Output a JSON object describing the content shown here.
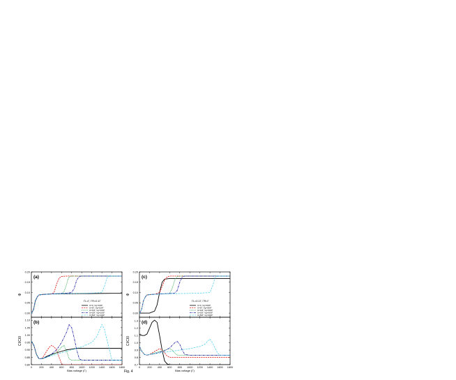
{
  "figure": {
    "caption": "Fig. 4"
  },
  "chart_data": [
    {
      "panel": "(a)",
      "type": "line",
      "ylabel": "Φ",
      "xlim": [
        0,
        1800
      ],
      "ylim": [
        -0.02,
        0.2
      ],
      "x_ticks": [
        0,
        200,
        400,
        600,
        800,
        1000,
        1200,
        1400,
        1600,
        1800
      ],
      "y_ticks": [
        "0.00",
        "0.05",
        "0.10",
        "0.15",
        "0.20"
      ],
      "annotation": "ΓL=Γ, ΓR=0.1Γ",
      "legend_position": "right",
      "legend": [
        "U=0, Vg=100Γ",
        "U=5Γ, Vg=100Γ",
        "U=10Γ, Vg=100Γ",
        "U=20Γ, Vg=100Γ",
        "U=50Γ, Vg=100Γ"
      ],
      "series": [
        {
          "x": [
            0,
            40,
            80,
            120,
            150,
            200,
            300,
            400,
            600,
            700,
            1000,
            1100,
            1600,
            1700,
            1800
          ],
          "y": [
            0.0,
            0.015,
            0.06,
            0.08,
            0.088,
            0.09,
            0.092,
            0.093,
            0.094,
            0.094,
            0.095,
            0.095,
            0.096,
            0.096,
            0.096
          ]
        },
        {
          "x": [
            0,
            40,
            80,
            120,
            150,
            200,
            300,
            400,
            450,
            500,
            550,
            600,
            700,
            800,
            1800
          ],
          "y": [
            0.0,
            0.015,
            0.06,
            0.08,
            0.088,
            0.09,
            0.092,
            0.093,
            0.1,
            0.14,
            0.17,
            0.178,
            0.18,
            0.18,
            0.18
          ]
        },
        {
          "x": [
            0,
            40,
            80,
            120,
            150,
            200,
            400,
            600,
            650,
            700,
            720,
            750,
            800,
            1800
          ],
          "y": [
            0.0,
            0.015,
            0.06,
            0.08,
            0.088,
            0.09,
            0.093,
            0.095,
            0.105,
            0.14,
            0.16,
            0.175,
            0.18,
            0.18
          ]
        },
        {
          "x": [
            0,
            40,
            80,
            120,
            150,
            200,
            400,
            700,
            800,
            850,
            900,
            950,
            1000,
            1800
          ],
          "y": [
            0.0,
            0.015,
            0.06,
            0.08,
            0.088,
            0.09,
            0.093,
            0.097,
            0.1,
            0.12,
            0.16,
            0.178,
            0.18,
            0.18
          ]
        },
        {
          "x": [
            0,
            40,
            80,
            120,
            150,
            200,
            400,
            800,
            1200,
            1400,
            1450,
            1500,
            1550,
            1800
          ],
          "y": [
            0.0,
            0.015,
            0.06,
            0.08,
            0.088,
            0.09,
            0.093,
            0.095,
            0.097,
            0.1,
            0.13,
            0.17,
            0.18,
            0.18
          ]
        }
      ]
    },
    {
      "panel": "(b)",
      "type": "line",
      "ylabel": "CI/CI0",
      "xlabel": "Bias voltage (Γ)",
      "xlim": [
        0,
        1800
      ],
      "ylim": [
        0.8,
        1.12
      ],
      "x_ticks": [
        0,
        200,
        400,
        600,
        800,
        1000,
        1200,
        1400,
        1600,
        1800
      ],
      "y_ticks": [
        "0.80",
        "0.85",
        "0.90",
        "0.95",
        "1.00",
        "1.05",
        "1.10"
      ],
      "series": [
        {
          "x": [
            0,
            50,
            100,
            150,
            200,
            250,
            300,
            400,
            500,
            600,
            700,
            800,
            900,
            1000,
            1800
          ],
          "y": [
            0.96,
            0.93,
            0.87,
            0.84,
            0.84,
            0.845,
            0.855,
            0.87,
            0.88,
            0.89,
            0.9,
            0.905,
            0.91,
            0.91,
            0.91
          ]
        },
        {
          "x": [
            0,
            50,
            100,
            150,
            200,
            250,
            300,
            350,
            400,
            450,
            500,
            550,
            600,
            650,
            1800
          ],
          "y": [
            0.96,
            0.93,
            0.87,
            0.84,
            0.84,
            0.86,
            0.89,
            0.915,
            0.93,
            0.92,
            0.9,
            0.85,
            0.805,
            0.8,
            0.8
          ]
        },
        {
          "x": [
            0,
            50,
            100,
            150,
            200,
            300,
            400,
            500,
            550,
            600,
            650,
            700,
            750,
            800,
            1800
          ],
          "y": [
            0.96,
            0.93,
            0.87,
            0.84,
            0.84,
            0.85,
            0.865,
            0.88,
            0.9,
            0.92,
            0.93,
            0.89,
            0.84,
            0.83,
            0.83
          ]
        },
        {
          "x": [
            0,
            50,
            100,
            150,
            200,
            300,
            400,
            500,
            600,
            700,
            750,
            800,
            850,
            900,
            950,
            1000,
            1800
          ],
          "y": [
            0.96,
            0.93,
            0.87,
            0.84,
            0.84,
            0.85,
            0.87,
            0.9,
            0.95,
            1.02,
            1.07,
            1.05,
            0.98,
            0.9,
            0.84,
            0.83,
            0.83
          ]
        },
        {
          "x": [
            0,
            50,
            100,
            150,
            200,
            400,
            600,
            800,
            1000,
            1200,
            1300,
            1350,
            1400,
            1450,
            1500,
            1550,
            1600,
            1800
          ],
          "y": [
            0.96,
            0.93,
            0.87,
            0.84,
            0.84,
            0.86,
            0.88,
            0.9,
            0.92,
            0.95,
            0.99,
            1.03,
            1.07,
            1.04,
            0.97,
            0.9,
            0.83,
            0.83
          ]
        }
      ]
    },
    {
      "panel": "(c)",
      "type": "line",
      "ylabel": "Φ",
      "xlim": [
        0,
        1800
      ],
      "ylim": [
        -0.02,
        0.2
      ],
      "x_ticks": [
        0,
        200,
        400,
        600,
        800,
        1000,
        1200,
        1400,
        1600,
        1800
      ],
      "y_ticks": [
        "0.00",
        "0.05",
        "0.10",
        "0.15",
        "0.20"
      ],
      "annotation": "ΓL=0.1Γ, ΓR=Γ",
      "legend_position": "right",
      "legend": [
        "U=0, Vg=300Γ",
        "U=5Γ, Vg=300Γ",
        "U=10Γ, Vg=300Γ",
        "U=20Γ, Vg=300Γ",
        "U=50Γ, Vg=300Γ"
      ],
      "series": [
        {
          "x": [
            0,
            200,
            300,
            350,
            400,
            450,
            500,
            600,
            1800
          ],
          "y": [
            0.0,
            0.0,
            0.01,
            0.04,
            0.1,
            0.15,
            0.165,
            0.168,
            0.168
          ]
        },
        {
          "x": [
            0,
            40,
            80,
            120,
            150,
            200,
            300,
            400,
            450,
            500,
            550,
            600,
            700,
            1800
          ],
          "y": [
            0.0,
            0.015,
            0.06,
            0.08,
            0.088,
            0.09,
            0.092,
            0.1,
            0.13,
            0.16,
            0.175,
            0.18,
            0.18,
            0.18
          ]
        },
        {
          "x": [
            0,
            40,
            80,
            120,
            150,
            200,
            400,
            600,
            650,
            700,
            750,
            800,
            1800
          ],
          "y": [
            0.0,
            0.015,
            0.06,
            0.08,
            0.088,
            0.09,
            0.093,
            0.095,
            0.12,
            0.16,
            0.178,
            0.18,
            0.18
          ]
        },
        {
          "x": [
            0,
            40,
            80,
            120,
            150,
            200,
            400,
            700,
            750,
            800,
            850,
            900,
            1800
          ],
          "y": [
            0.0,
            0.015,
            0.06,
            0.08,
            0.088,
            0.09,
            0.093,
            0.097,
            0.11,
            0.15,
            0.175,
            0.18,
            0.18
          ]
        },
        {
          "x": [
            0,
            40,
            80,
            120,
            150,
            200,
            400,
            800,
            1200,
            1400,
            1450,
            1500,
            1550,
            1800
          ],
          "y": [
            0.0,
            0.015,
            0.06,
            0.08,
            0.088,
            0.09,
            0.093,
            0.095,
            0.097,
            0.1,
            0.13,
            0.17,
            0.18,
            0.18
          ]
        }
      ]
    },
    {
      "panel": "(d)",
      "type": "line",
      "ylabel": "CI/CI0",
      "xlabel": "Bias voltage (Γ)",
      "xlim": [
        0,
        1800
      ],
      "ylim": [
        0.7,
        1.35
      ],
      "x_ticks": [
        0,
        200,
        400,
        600,
        800,
        1000,
        1200,
        1400,
        1600,
        1800
      ],
      "y_ticks": [
        "0.7",
        "0.8",
        "0.9",
        "1.0",
        "1.1",
        "1.2",
        "1.3"
      ],
      "series": [
        {
          "x": [
            0,
            50,
            100,
            150,
            200,
            250,
            300,
            350,
            400,
            450,
            500,
            550,
            600,
            700,
            1800
          ],
          "y": [
            1.12,
            1.1,
            1.1,
            1.12,
            1.2,
            1.28,
            1.31,
            1.28,
            1.1,
            0.9,
            0.75,
            0.71,
            0.7,
            0.7,
            0.7
          ]
        },
        {
          "x": [
            0,
            50,
            100,
            150,
            200,
            300,
            400,
            450,
            500,
            550,
            600,
            650,
            700,
            800,
            1800
          ],
          "y": [
            0.95,
            0.88,
            0.84,
            0.83,
            0.84,
            0.88,
            0.92,
            0.9,
            0.86,
            0.82,
            0.8,
            0.8,
            0.8,
            0.8,
            0.8
          ]
        },
        {
          "x": [
            0,
            50,
            100,
            150,
            200,
            300,
            400,
            500,
            600,
            650,
            700,
            750,
            800,
            1800
          ],
          "y": [
            0.95,
            0.88,
            0.84,
            0.83,
            0.84,
            0.86,
            0.88,
            0.9,
            0.92,
            0.9,
            0.86,
            0.83,
            0.83,
            0.83
          ]
        },
        {
          "x": [
            0,
            50,
            100,
            150,
            200,
            300,
            400,
            500,
            600,
            700,
            750,
            800,
            850,
            900,
            1000,
            1800
          ],
          "y": [
            0.95,
            0.88,
            0.84,
            0.83,
            0.84,
            0.85,
            0.87,
            0.89,
            0.93,
            1.0,
            1.02,
            0.98,
            0.9,
            0.84,
            0.83,
            0.83
          ]
        },
        {
          "x": [
            0,
            50,
            100,
            150,
            200,
            400,
            600,
            800,
            1000,
            1200,
            1300,
            1350,
            1400,
            1450,
            1500,
            1550,
            1600,
            1800
          ],
          "y": [
            0.95,
            0.88,
            0.84,
            0.83,
            0.84,
            0.86,
            0.88,
            0.9,
            0.92,
            0.95,
            0.98,
            1.02,
            1.05,
            1.0,
            0.93,
            0.86,
            0.83,
            0.83
          ]
        }
      ]
    }
  ],
  "style": {
    "series_colors": [
      "#000000",
      "#e0201b",
      "#2fa84f",
      "#2a2aa8",
      "#35c8e8"
    ],
    "series_dash": [
      "",
      "2,1.2",
      "1,1",
      "3,1,1,1",
      "1.5,1,0.4,1"
    ]
  }
}
